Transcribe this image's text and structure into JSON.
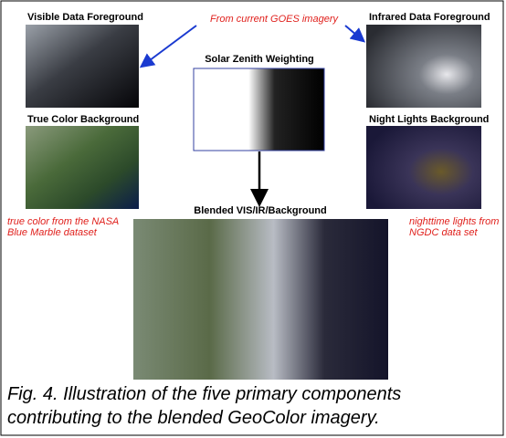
{
  "header": {
    "note": "From current GOES imagery"
  },
  "panels": [
    {
      "title": "Visible Data Foreground"
    },
    {
      "title": "Infrared Data Foreground"
    },
    {
      "title": "Solar Zenith Weighting"
    },
    {
      "title": "True Color Background"
    },
    {
      "title": "Night Lights Background"
    },
    {
      "title": "Blended VIS/IR/Background"
    }
  ],
  "notes": {
    "left": [
      "true color from the NASA",
      "Blue Marble dataset"
    ],
    "right": [
      "nighttime lights from",
      "NGDC data set"
    ]
  },
  "caption": [
    "Fig. 4.  Illustration of the five primary components",
    "contributing to the blended GeoColor imagery."
  ]
}
